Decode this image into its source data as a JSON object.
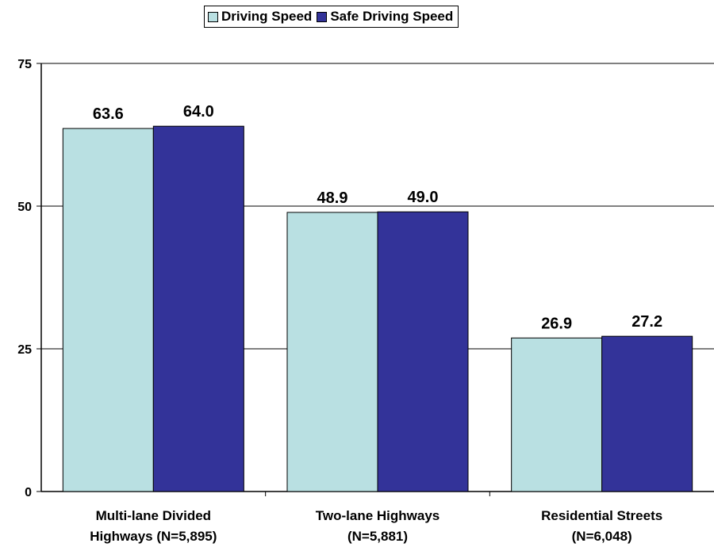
{
  "chart_data": {
    "type": "bar",
    "title": "",
    "xlabel": "",
    "ylabel": "",
    "ylim": [
      0,
      75
    ],
    "yticks": [
      0,
      25,
      50,
      75
    ],
    "grid": true,
    "legend_position": "top",
    "categories": [
      [
        "Multi-lane Divided",
        "Highways (N=5,895)"
      ],
      [
        "Two-lane Highways",
        "(N=5,881)"
      ],
      [
        "Residential Streets",
        "(N=6,048)"
      ]
    ],
    "series": [
      {
        "name": "Driving Speed",
        "color": "#b9e0e2",
        "values": [
          63.6,
          48.9,
          26.9
        ],
        "labels": [
          "63.6",
          "48.9",
          "26.9"
        ]
      },
      {
        "name": "Safe Driving Speed",
        "color": "#333399",
        "values": [
          64.0,
          49.0,
          27.2
        ],
        "labels": [
          "64.0",
          "49.0",
          "27.2"
        ]
      }
    ]
  }
}
